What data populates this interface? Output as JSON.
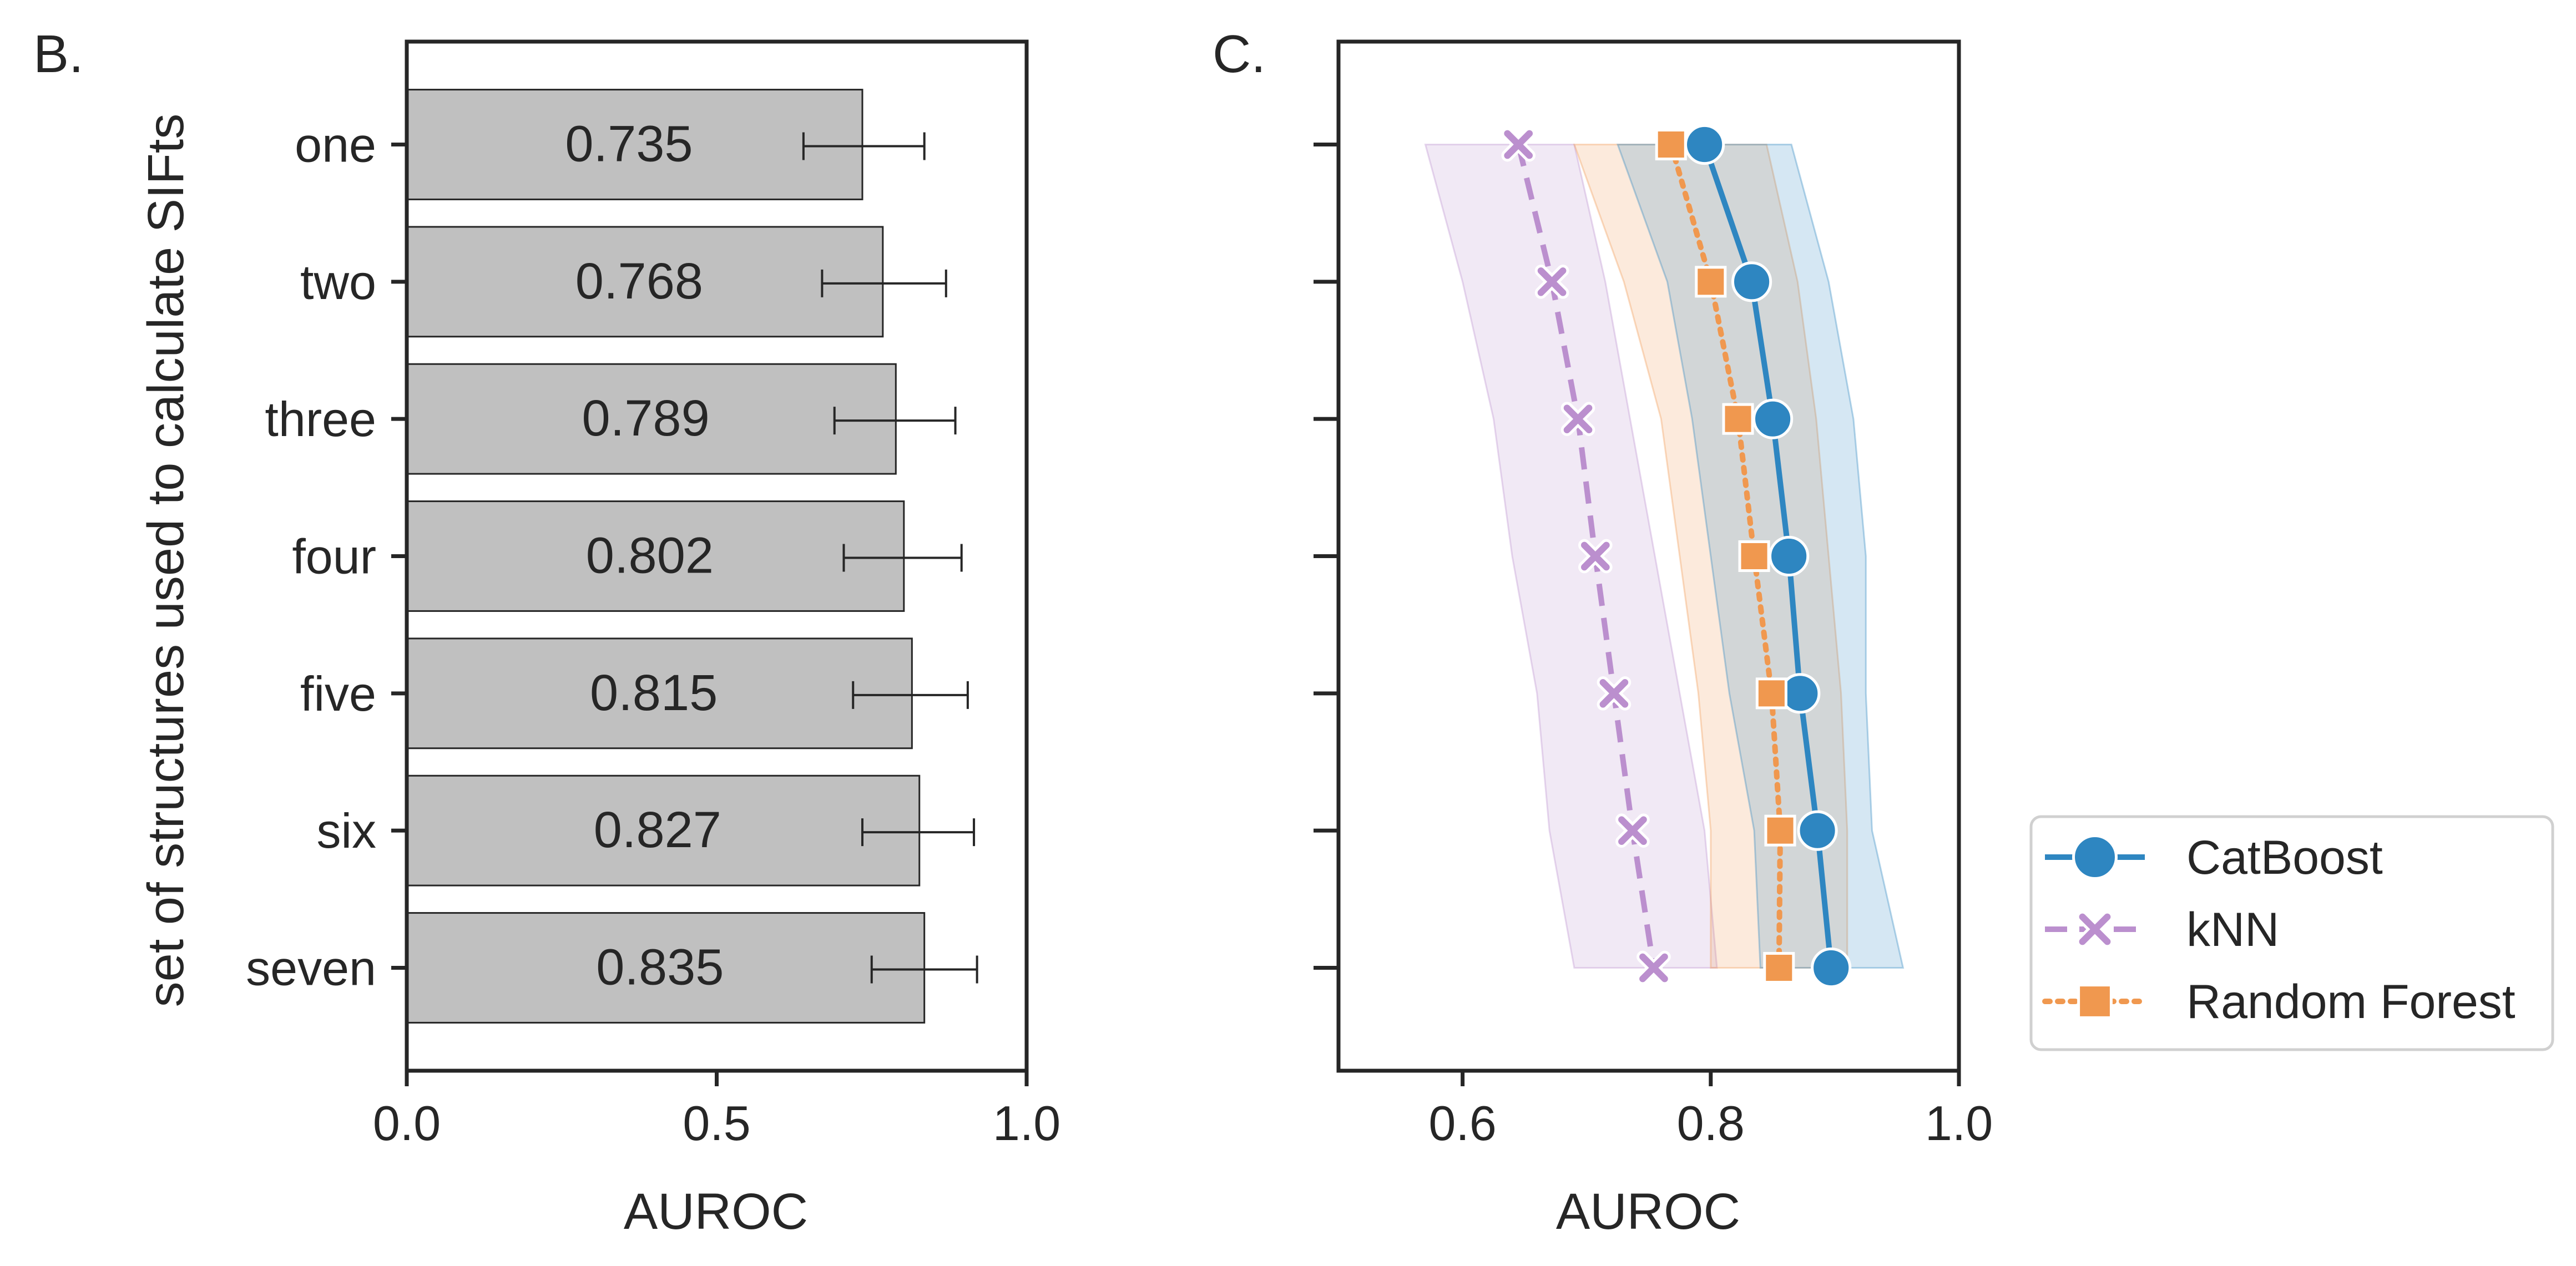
{
  "chart_data": [
    {
      "panel": "B.",
      "type": "bar",
      "orientation": "horizontal",
      "categories": [
        "one",
        "two",
        "three",
        "four",
        "five",
        "six",
        "seven"
      ],
      "values": [
        0.735,
        0.768,
        0.789,
        0.802,
        0.815,
        0.827,
        0.835
      ],
      "value_labels": [
        "0.735",
        "0.768",
        "0.789",
        "0.802",
        "0.815",
        "0.827",
        "0.835"
      ],
      "error_low": [
        0.64,
        0.67,
        0.69,
        0.705,
        0.72,
        0.735,
        0.75
      ],
      "error_high": [
        0.835,
        0.87,
        0.885,
        0.895,
        0.905,
        0.915,
        0.92
      ],
      "xlabel": "AUROC",
      "ylabel": "set of structures used to calculate SIFts",
      "xlim": [
        0.0,
        1.0
      ],
      "xticks": [
        "0.0",
        "0.5",
        "1.0"
      ],
      "bar_color": "#c0c0c0"
    },
    {
      "panel": "C.",
      "type": "line",
      "orientation": "horizontal",
      "categories": [
        "one",
        "two",
        "three",
        "four",
        "five",
        "six",
        "seven"
      ],
      "xlabel": "AUROC",
      "xlim": [
        0.5,
        1.0
      ],
      "xticks": [
        "0.6",
        "0.8",
        "1.0"
      ],
      "series": [
        {
          "name": "CatBoost",
          "color": "#2e86c1",
          "marker": "circle",
          "dash": "solid",
          "values": [
            0.795,
            0.833,
            0.85,
            0.863,
            0.872,
            0.886,
            0.897
          ],
          "band_low": [
            0.725,
            0.765,
            0.785,
            0.8,
            0.815,
            0.835,
            0.84
          ],
          "band_high": [
            0.865,
            0.895,
            0.915,
            0.925,
            0.925,
            0.93,
            0.955
          ]
        },
        {
          "name": "kNN",
          "color": "#bb8fce",
          "marker": "x",
          "dash": "dashed",
          "values": [
            0.645,
            0.672,
            0.693,
            0.707,
            0.722,
            0.737,
            0.754
          ],
          "band_low": [
            0.57,
            0.6,
            0.625,
            0.64,
            0.66,
            0.67,
            0.69
          ],
          "band_high": [
            0.69,
            0.715,
            0.735,
            0.755,
            0.775,
            0.795,
            0.805
          ]
        },
        {
          "name": "Random Forest",
          "color": "#f0984f",
          "marker": "square",
          "dash": "dotted",
          "values": [
            0.768,
            0.8,
            0.822,
            0.835,
            0.849,
            0.856,
            0.855
          ],
          "band_low": [
            0.69,
            0.73,
            0.76,
            0.775,
            0.79,
            0.8,
            0.8
          ],
          "band_high": [
            0.845,
            0.87,
            0.885,
            0.895,
            0.905,
            0.91,
            0.91
          ]
        }
      ]
    }
  ]
}
